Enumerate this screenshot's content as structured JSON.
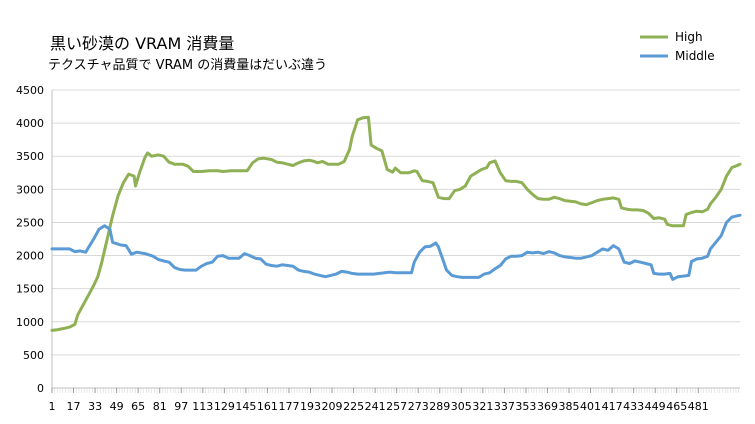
{
  "chart_data": {
    "type": "line",
    "title": "黒い砂漠の VRAM 消費量",
    "subtitle": "テクスチャ品質で VRAM の消費量はだいぶ違う",
    "ylim": [
      0,
      4500
    ],
    "yticks": [
      0,
      500,
      1000,
      1500,
      2000,
      2500,
      3000,
      3500,
      4000,
      4500
    ],
    "xlim": [
      1,
      512
    ],
    "xtick_labels": [
      1,
      17,
      33,
      49,
      65,
      81,
      97,
      113,
      129,
      145,
      161,
      177,
      193,
      209,
      225,
      241,
      257,
      273,
      289,
      305,
      321,
      337,
      353,
      369,
      385,
      401,
      417,
      433,
      449,
      465,
      481
    ],
    "grid": true,
    "legend_position": "top-right",
    "series": [
      {
        "name": "High",
        "color": "#8fb054",
        "points": [
          [
            1,
            870
          ],
          [
            5,
            880
          ],
          [
            10,
            900
          ],
          [
            14,
            920
          ],
          [
            18,
            960
          ],
          [
            20,
            1100
          ],
          [
            24,
            1250
          ],
          [
            28,
            1400
          ],
          [
            32,
            1550
          ],
          [
            35,
            1680
          ],
          [
            38,
            1900
          ],
          [
            42,
            2250
          ],
          [
            46,
            2600
          ],
          [
            50,
            2900
          ],
          [
            54,
            3100
          ],
          [
            58,
            3230
          ],
          [
            62,
            3200
          ],
          [
            63,
            3050
          ],
          [
            66,
            3250
          ],
          [
            70,
            3480
          ],
          [
            72,
            3550
          ],
          [
            75,
            3500
          ],
          [
            80,
            3520
          ],
          [
            84,
            3500
          ],
          [
            88,
            3410
          ],
          [
            92,
            3380
          ],
          [
            98,
            3380
          ],
          [
            102,
            3350
          ],
          [
            106,
            3270
          ],
          [
            112,
            3270
          ],
          [
            118,
            3280
          ],
          [
            124,
            3280
          ],
          [
            128,
            3270
          ],
          [
            134,
            3280
          ],
          [
            140,
            3280
          ],
          [
            146,
            3280
          ],
          [
            150,
            3400
          ],
          [
            154,
            3460
          ],
          [
            158,
            3470
          ],
          [
            164,
            3450
          ],
          [
            168,
            3410
          ],
          [
            172,
            3400
          ],
          [
            176,
            3380
          ],
          [
            180,
            3360
          ],
          [
            184,
            3400
          ],
          [
            188,
            3430
          ],
          [
            192,
            3440
          ],
          [
            196,
            3420
          ],
          [
            198,
            3400
          ],
          [
            202,
            3420
          ],
          [
            206,
            3380
          ],
          [
            210,
            3380
          ],
          [
            214,
            3380
          ],
          [
            218,
            3420
          ],
          [
            222,
            3600
          ],
          [
            224,
            3800
          ],
          [
            228,
            4050
          ],
          [
            232,
            4080
          ],
          [
            236,
            4090
          ],
          [
            238,
            3670
          ],
          [
            242,
            3620
          ],
          [
            246,
            3580
          ],
          [
            250,
            3300
          ],
          [
            254,
            3260
          ],
          [
            256,
            3320
          ],
          [
            260,
            3250
          ],
          [
            262,
            3250
          ],
          [
            266,
            3250
          ],
          [
            270,
            3280
          ],
          [
            272,
            3270
          ],
          [
            276,
            3130
          ],
          [
            280,
            3120
          ],
          [
            284,
            3100
          ],
          [
            288,
            2880
          ],
          [
            292,
            2860
          ],
          [
            296,
            2860
          ],
          [
            300,
            2980
          ],
          [
            304,
            3000
          ],
          [
            308,
            3050
          ],
          [
            312,
            3200
          ],
          [
            316,
            3250
          ],
          [
            320,
            3300
          ],
          [
            324,
            3330
          ],
          [
            326,
            3400
          ],
          [
            330,
            3430
          ],
          [
            334,
            3250
          ],
          [
            338,
            3130
          ],
          [
            342,
            3120
          ],
          [
            346,
            3120
          ],
          [
            350,
            3100
          ],
          [
            354,
            3000
          ],
          [
            358,
            2920
          ],
          [
            362,
            2860
          ],
          [
            366,
            2850
          ],
          [
            370,
            2850
          ],
          [
            374,
            2880
          ],
          [
            378,
            2860
          ],
          [
            382,
            2830
          ],
          [
            386,
            2820
          ],
          [
            390,
            2810
          ],
          [
            394,
            2780
          ],
          [
            398,
            2770
          ],
          [
            402,
            2800
          ],
          [
            406,
            2830
          ],
          [
            410,
            2850
          ],
          [
            414,
            2860
          ],
          [
            418,
            2870
          ],
          [
            422,
            2850
          ],
          [
            424,
            2720
          ],
          [
            428,
            2700
          ],
          [
            432,
            2690
          ],
          [
            436,
            2690
          ],
          [
            440,
            2680
          ],
          [
            444,
            2640
          ],
          [
            448,
            2560
          ],
          [
            452,
            2570
          ],
          [
            456,
            2550
          ],
          [
            458,
            2470
          ],
          [
            462,
            2450
          ],
          [
            466,
            2450
          ],
          [
            470,
            2450
          ],
          [
            472,
            2620
          ],
          [
            476,
            2650
          ],
          [
            480,
            2670
          ],
          [
            484,
            2660
          ],
          [
            488,
            2700
          ],
          [
            490,
            2780
          ],
          [
            494,
            2880
          ],
          [
            498,
            3000
          ],
          [
            502,
            3200
          ],
          [
            506,
            3330
          ],
          [
            510,
            3360
          ],
          [
            512,
            3380
          ]
        ]
      },
      {
        "name": "Middle",
        "color": "#5b9bd5",
        "points": [
          [
            1,
            2100
          ],
          [
            8,
            2100
          ],
          [
            14,
            2100
          ],
          [
            18,
            2060
          ],
          [
            22,
            2070
          ],
          [
            26,
            2050
          ],
          [
            28,
            2120
          ],
          [
            32,
            2250
          ],
          [
            36,
            2400
          ],
          [
            40,
            2450
          ],
          [
            44,
            2400
          ],
          [
            46,
            2200
          ],
          [
            52,
            2160
          ],
          [
            56,
            2150
          ],
          [
            60,
            2020
          ],
          [
            64,
            2050
          ],
          [
            70,
            2030
          ],
          [
            76,
            1990
          ],
          [
            80,
            1940
          ],
          [
            84,
            1920
          ],
          [
            88,
            1900
          ],
          [
            92,
            1820
          ],
          [
            96,
            1790
          ],
          [
            100,
            1780
          ],
          [
            104,
            1780
          ],
          [
            108,
            1780
          ],
          [
            112,
            1840
          ],
          [
            116,
            1880
          ],
          [
            120,
            1900
          ],
          [
            124,
            1990
          ],
          [
            128,
            2000
          ],
          [
            132,
            1960
          ],
          [
            136,
            1960
          ],
          [
            140,
            1960
          ],
          [
            144,
            2030
          ],
          [
            148,
            2000
          ],
          [
            152,
            1960
          ],
          [
            156,
            1950
          ],
          [
            160,
            1870
          ],
          [
            164,
            1850
          ],
          [
            168,
            1840
          ],
          [
            172,
            1860
          ],
          [
            176,
            1850
          ],
          [
            180,
            1840
          ],
          [
            184,
            1780
          ],
          [
            188,
            1760
          ],
          [
            192,
            1750
          ],
          [
            196,
            1720
          ],
          [
            200,
            1700
          ],
          [
            204,
            1680
          ],
          [
            208,
            1700
          ],
          [
            212,
            1720
          ],
          [
            216,
            1760
          ],
          [
            220,
            1750
          ],
          [
            224,
            1730
          ],
          [
            228,
            1720
          ],
          [
            232,
            1720
          ],
          [
            236,
            1720
          ],
          [
            240,
            1720
          ],
          [
            244,
            1730
          ],
          [
            248,
            1740
          ],
          [
            252,
            1750
          ],
          [
            256,
            1740
          ],
          [
            260,
            1740
          ],
          [
            264,
            1740
          ],
          [
            268,
            1740
          ],
          [
            270,
            1900
          ],
          [
            274,
            2050
          ],
          [
            278,
            2130
          ],
          [
            282,
            2140
          ],
          [
            286,
            2190
          ],
          [
            288,
            2130
          ],
          [
            292,
            1900
          ],
          [
            294,
            1780
          ],
          [
            298,
            1700
          ],
          [
            302,
            1680
          ],
          [
            306,
            1670
          ],
          [
            310,
            1670
          ],
          [
            314,
            1670
          ],
          [
            318,
            1670
          ],
          [
            322,
            1720
          ],
          [
            326,
            1740
          ],
          [
            330,
            1800
          ],
          [
            334,
            1850
          ],
          [
            338,
            1950
          ],
          [
            342,
            1990
          ],
          [
            346,
            1990
          ],
          [
            350,
            2000
          ],
          [
            354,
            2050
          ],
          [
            358,
            2040
          ],
          [
            362,
            2050
          ],
          [
            366,
            2030
          ],
          [
            370,
            2060
          ],
          [
            374,
            2040
          ],
          [
            378,
            2000
          ],
          [
            382,
            1980
          ],
          [
            386,
            1970
          ],
          [
            390,
            1960
          ],
          [
            394,
            1960
          ],
          [
            398,
            1980
          ],
          [
            402,
            2000
          ],
          [
            406,
            2050
          ],
          [
            410,
            2100
          ],
          [
            414,
            2080
          ],
          [
            418,
            2150
          ],
          [
            422,
            2100
          ],
          [
            426,
            1900
          ],
          [
            430,
            1880
          ],
          [
            434,
            1920
          ],
          [
            438,
            1900
          ],
          [
            442,
            1880
          ],
          [
            446,
            1860
          ],
          [
            448,
            1730
          ],
          [
            452,
            1720
          ],
          [
            456,
            1720
          ],
          [
            460,
            1730
          ],
          [
            462,
            1640
          ],
          [
            466,
            1680
          ],
          [
            470,
            1690
          ],
          [
            474,
            1700
          ],
          [
            476,
            1910
          ],
          [
            480,
            1950
          ],
          [
            484,
            1960
          ],
          [
            488,
            1990
          ],
          [
            490,
            2100
          ],
          [
            494,
            2200
          ],
          [
            498,
            2300
          ],
          [
            502,
            2500
          ],
          [
            506,
            2580
          ],
          [
            510,
            2600
          ],
          [
            512,
            2610
          ]
        ]
      }
    ]
  }
}
